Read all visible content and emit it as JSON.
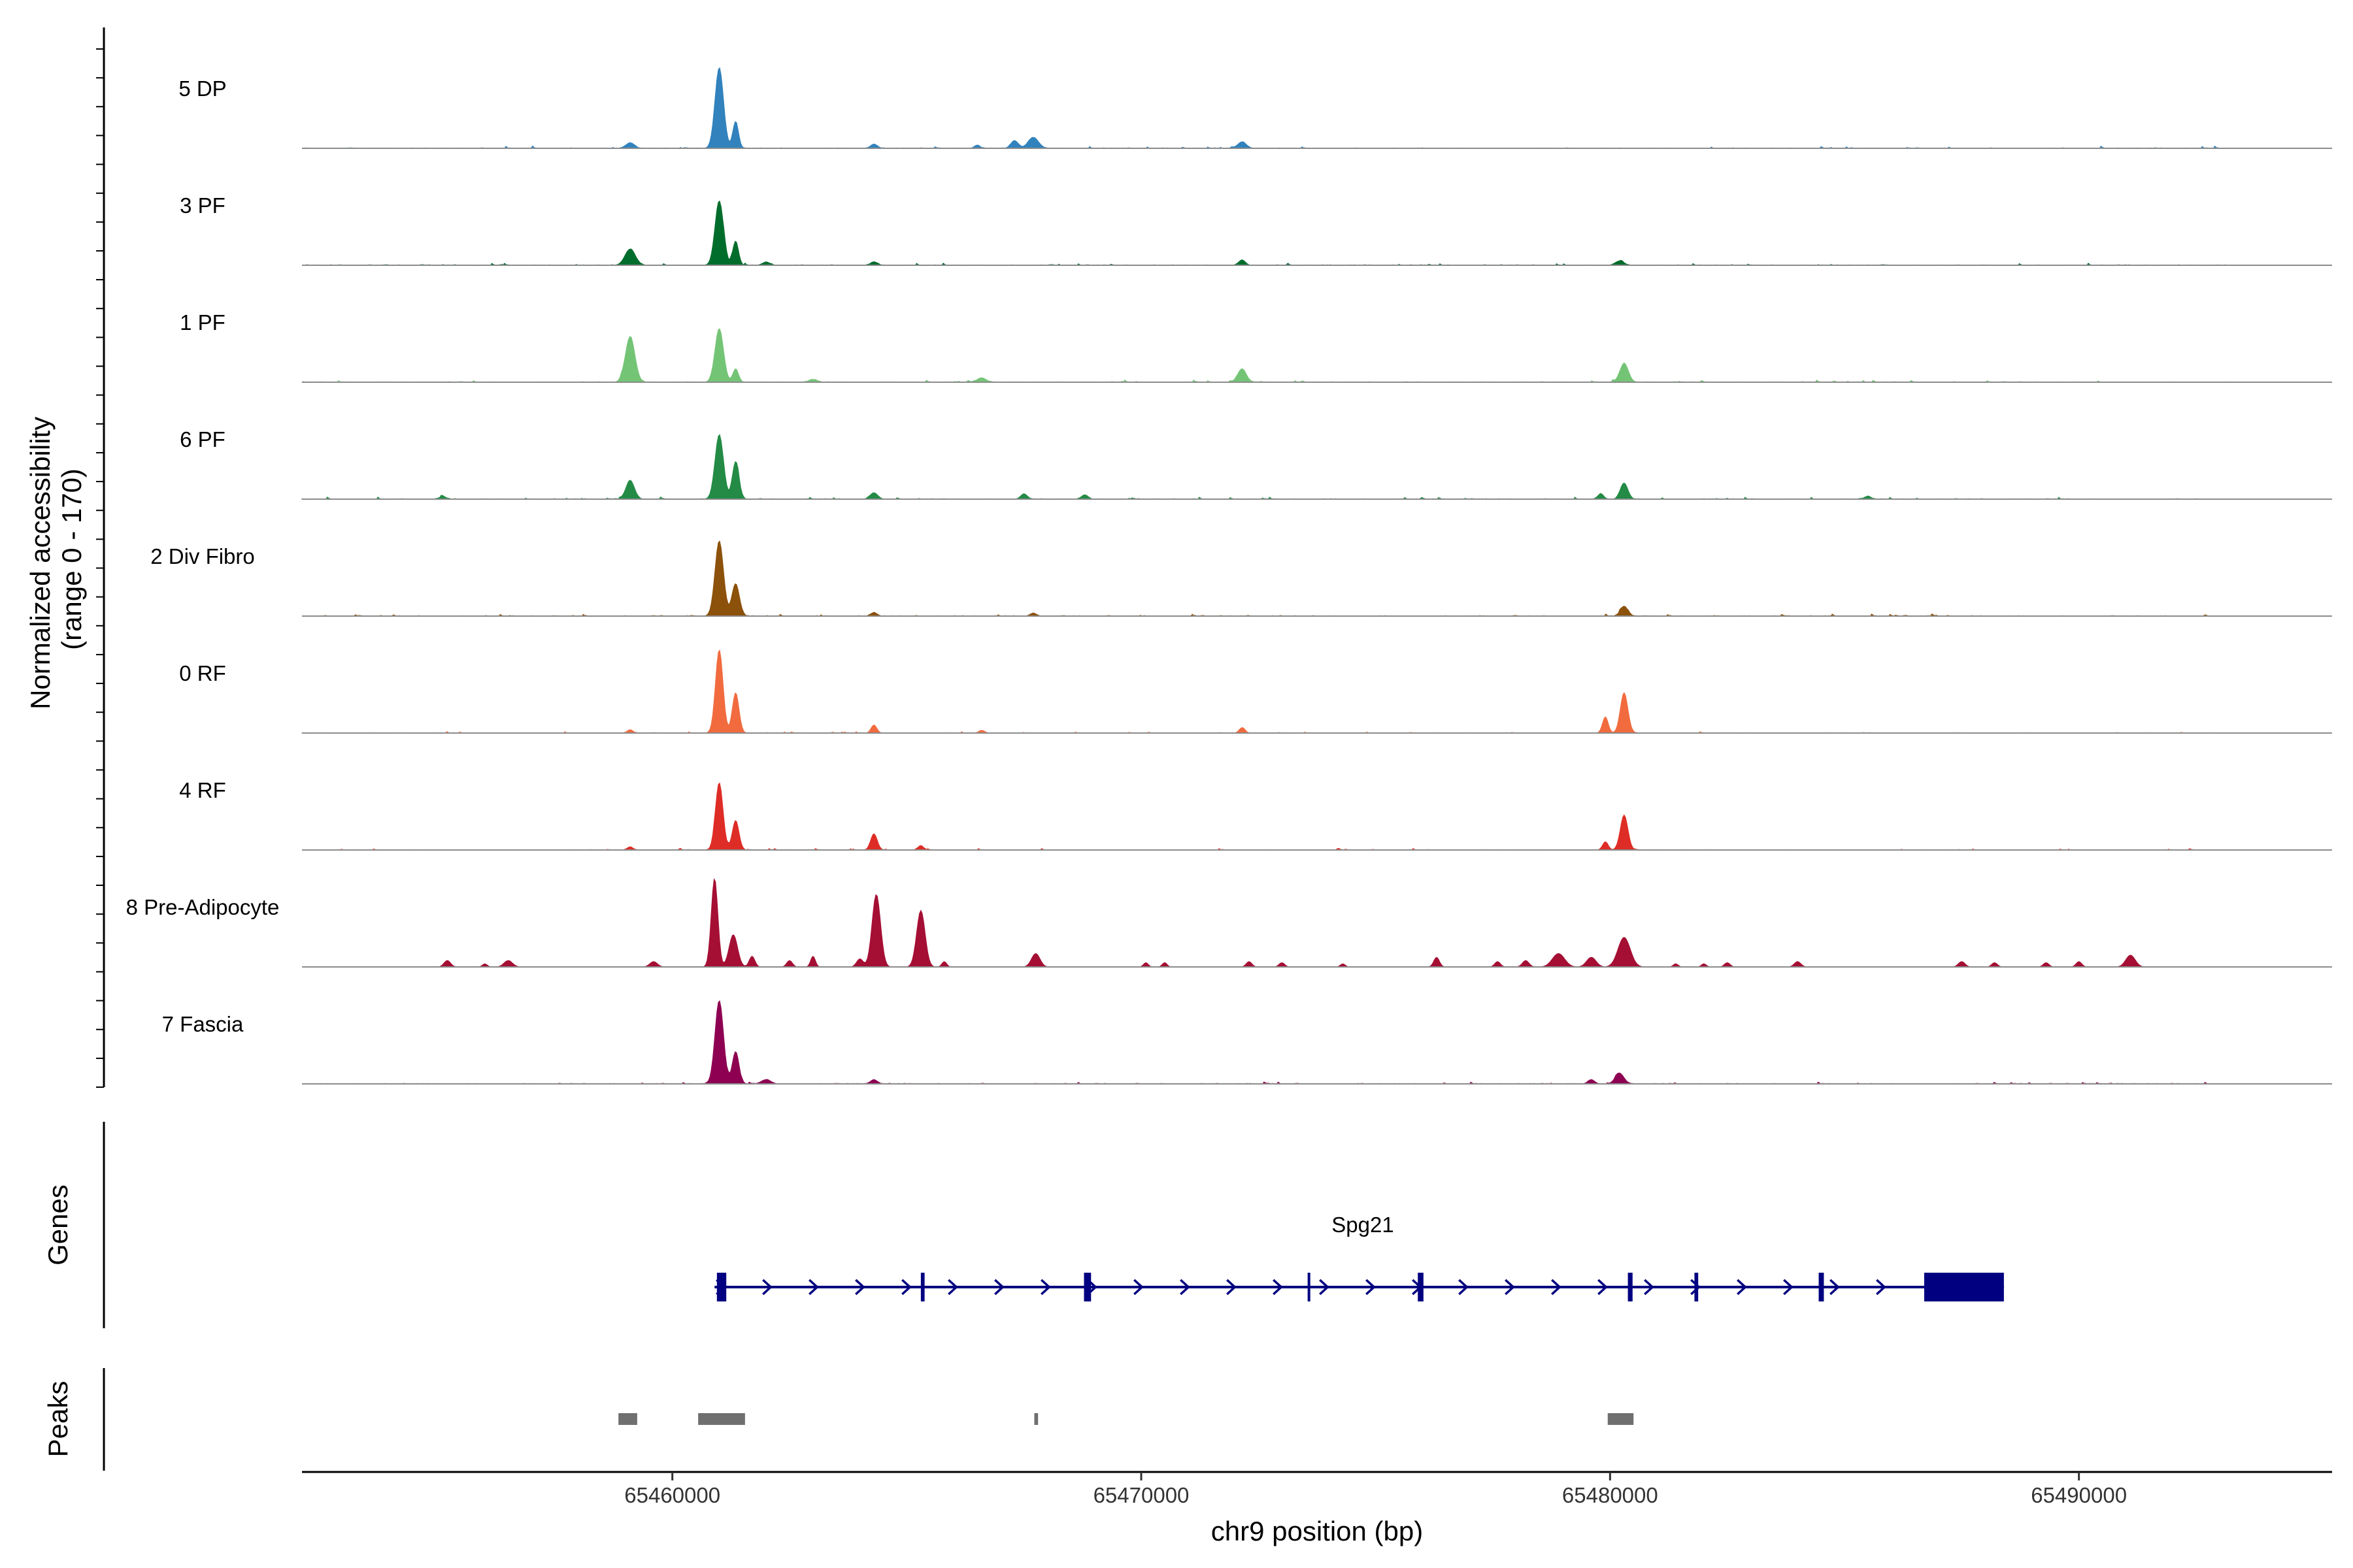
{
  "chart_data": {
    "type": "area",
    "title": "",
    "xlabel": "chr9 position (bp)",
    "ylabel_line1": "Normalized accessibility",
    "ylabel_line2": "(range 0 - 170)",
    "ylim": [
      0,
      170
    ],
    "xlim": [
      65452100,
      65495400
    ],
    "xticks": [
      65460000,
      65470000,
      65480000,
      65490000
    ],
    "xtick_labels": [
      "65460000",
      "65470000",
      "65480000",
      "65490000"
    ],
    "data_start": 65452100,
    "data_end": 65495200,
    "tracks": [
      {
        "name": "5 DP",
        "color": "#3182bd",
        "noise": 3,
        "dataEnd": 65493000,
        "peaks": [
          [
            65461000,
            150,
            90
          ],
          [
            65461350,
            50,
            60
          ],
          [
            65459100,
            10,
            90
          ],
          [
            65467700,
            20,
            110
          ],
          [
            65467300,
            14,
            80
          ],
          [
            65464300,
            8,
            70
          ],
          [
            65472150,
            12,
            90
          ],
          [
            65466500,
            6,
            60
          ]
        ]
      },
      {
        "name": "3 PF",
        "color": "#006d2c",
        "noise": 3,
        "dataEnd": 65493300,
        "peaks": [
          [
            65461000,
            120,
            90
          ],
          [
            65461350,
            45,
            60
          ],
          [
            65459100,
            30,
            110
          ],
          [
            65480200,
            8,
            90
          ],
          [
            65472150,
            10,
            70
          ],
          [
            65464300,
            6,
            70
          ],
          [
            65462000,
            6,
            80
          ]
        ]
      },
      {
        "name": "1 PF",
        "color": "#74c476",
        "noise": 3,
        "dataEnd": 65493300,
        "peaks": [
          [
            65459100,
            85,
            100
          ],
          [
            65461000,
            100,
            90
          ],
          [
            65461350,
            25,
            60
          ],
          [
            65472150,
            25,
            90
          ],
          [
            65480300,
            35,
            90
          ],
          [
            65466600,
            8,
            90
          ],
          [
            65463000,
            5,
            90
          ]
        ]
      },
      {
        "name": "6 PF",
        "color": "#238b45",
        "noise": 3,
        "dataEnd": 65493300,
        "peaks": [
          [
            65459100,
            35,
            90
          ],
          [
            65461000,
            120,
            90
          ],
          [
            65461350,
            70,
            70
          ],
          [
            65464300,
            12,
            80
          ],
          [
            65480300,
            30,
            80
          ],
          [
            65479800,
            10,
            60
          ],
          [
            65467500,
            10,
            70
          ],
          [
            65468800,
            8,
            70
          ],
          [
            65455100,
            5,
            70
          ],
          [
            65485500,
            5,
            70
          ]
        ]
      },
      {
        "name": "2 Div Fibro",
        "color": "#8c510a",
        "noise": 3,
        "dataEnd": 65493300,
        "peaks": [
          [
            65461000,
            140,
            90
          ],
          [
            65461350,
            60,
            80
          ],
          [
            65480300,
            18,
            80
          ],
          [
            65464300,
            6,
            70
          ],
          [
            65467700,
            5,
            70
          ]
        ]
      },
      {
        "name": "0 RF",
        "color": "#f16b3f",
        "noise": 2,
        "dataEnd": 65493300,
        "peaks": [
          [
            65461000,
            155,
            80
          ],
          [
            65461350,
            75,
            70
          ],
          [
            65480300,
            75,
            80
          ],
          [
            65479900,
            30,
            60
          ],
          [
            65464300,
            15,
            60
          ],
          [
            65472150,
            10,
            60
          ],
          [
            65459100,
            6,
            60
          ],
          [
            65466600,
            5,
            60
          ]
        ]
      },
      {
        "name": "4 RF",
        "color": "#de2d26",
        "noise": 2,
        "dataEnd": 65493300,
        "peaks": [
          [
            65461000,
            125,
            80
          ],
          [
            65461350,
            55,
            70
          ],
          [
            65480300,
            65,
            80
          ],
          [
            65479900,
            15,
            60
          ],
          [
            65464300,
            30,
            70
          ],
          [
            65465300,
            8,
            60
          ],
          [
            65459100,
            6,
            60
          ]
        ]
      },
      {
        "name": "8 Pre-Adipocyte",
        "color": "#a50f34",
        "noise": 0,
        "dataEnd": 65493300,
        "peaks": [
          [
            65460900,
            165,
            70
          ],
          [
            65461300,
            60,
            90
          ],
          [
            65464350,
            135,
            90
          ],
          [
            65465300,
            105,
            90
          ],
          [
            65461700,
            20,
            60
          ],
          [
            65467750,
            25,
            90
          ],
          [
            65478900,
            25,
            130
          ],
          [
            65480300,
            55,
            130
          ],
          [
            65479600,
            18,
            100
          ],
          [
            65463000,
            20,
            50
          ],
          [
            65476300,
            18,
            60
          ],
          [
            65491100,
            22,
            100
          ],
          [
            65455200,
            12,
            70
          ],
          [
            65456500,
            12,
            90
          ],
          [
            65459600,
            10,
            80
          ],
          [
            65462500,
            12,
            60
          ],
          [
            65464000,
            15,
            70
          ],
          [
            65465800,
            10,
            50
          ],
          [
            65472300,
            10,
            60
          ],
          [
            65473000,
            8,
            60
          ],
          [
            65477600,
            10,
            60
          ],
          [
            65478200,
            12,
            70
          ],
          [
            65482500,
            8,
            60
          ],
          [
            65484000,
            10,
            70
          ],
          [
            65487500,
            10,
            70
          ],
          [
            65488200,
            8,
            60
          ],
          [
            65489300,
            8,
            60
          ],
          [
            65490000,
            10,
            60
          ],
          [
            65470100,
            8,
            50
          ],
          [
            65470500,
            8,
            50
          ],
          [
            65482000,
            6,
            50
          ],
          [
            65481400,
            6,
            50
          ],
          [
            65456000,
            6,
            50
          ],
          [
            65474300,
            6,
            50
          ]
        ]
      },
      {
        "name": "7 Fascia",
        "color": "#8e0152",
        "noise": 3,
        "dataEnd": 65493000,
        "peaks": [
          [
            65461000,
            155,
            90
          ],
          [
            65461350,
            60,
            70
          ],
          [
            65480200,
            20,
            90
          ],
          [
            65479600,
            8,
            70
          ],
          [
            65464300,
            8,
            70
          ],
          [
            65462000,
            8,
            100
          ]
        ]
      }
    ],
    "genes_label": "Genes",
    "gene": {
      "name": "Spg21",
      "color": "#000080",
      "start": 65460900,
      "end": 65488400,
      "strand": "+",
      "exons": [
        [
          65460950,
          65461150
        ],
        [
          65465300,
          65465380
        ],
        [
          65468780,
          65468930
        ],
        [
          65473550,
          65473600
        ],
        [
          65475900,
          65476020
        ],
        [
          65480380,
          65480480
        ],
        [
          65481800,
          65481880
        ],
        [
          65484450,
          65484560
        ],
        [
          65486700,
          65488400
        ]
      ]
    },
    "peaks_label": "Peaks",
    "peak_regions": [
      [
        65458850,
        65459250
      ],
      [
        65460550,
        65461550
      ],
      [
        65467720,
        65467800
      ],
      [
        65479950,
        65480500
      ]
    ],
    "peak_color": "#6f6f6f"
  }
}
